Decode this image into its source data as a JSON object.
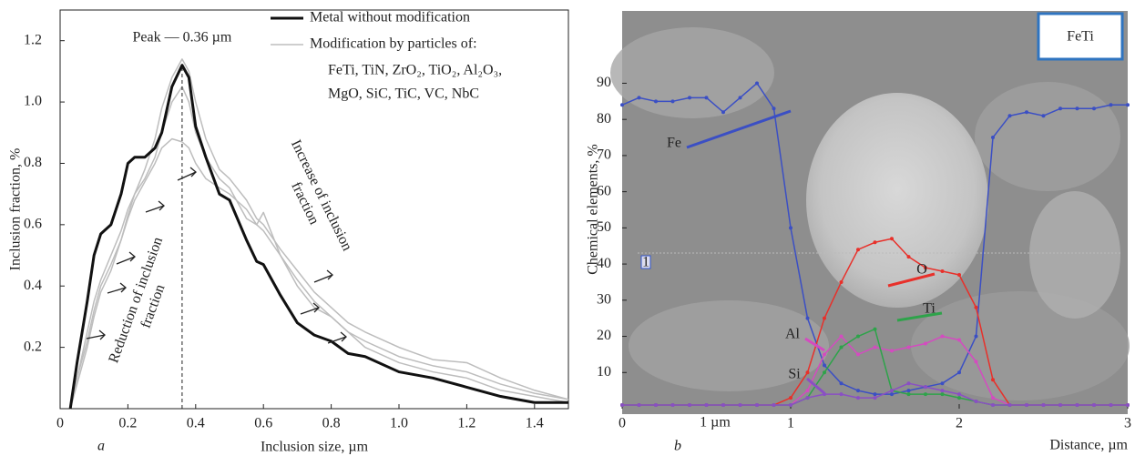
{
  "chart_data": [
    {
      "type": "line",
      "panel": "a",
      "xlabel": "Inclusion size, µm",
      "ylabel": "Inclusion fraction, %",
      "peak_label": "Peak — 0.36 µm",
      "peak_x": 0.36,
      "legend_note": [
        "FeTi, TiN, ZrO₂, TiO₂, Al₂O₃,",
        "MgO, SiC, TiC, VC, NbC"
      ],
      "notes": [
        [
          "Reduction of inclusion",
          "fraction"
        ],
        [
          "Increase of inclusion",
          "fraction"
        ]
      ],
      "xlim": [
        0,
        1.5
      ],
      "ylim": [
        0,
        1.3
      ],
      "xticks": [
        0,
        0.2,
        0.4,
        0.6,
        0.8,
        {
          "value": 1,
          "label": "1.0"
        },
        1.2,
        1.4
      ],
      "yticks": [
        0.2,
        0.4,
        0.6,
        0.8,
        {
          "value": 1,
          "label": "1.0"
        },
        1.2
      ],
      "x": [
        0.03,
        0.05,
        0.08,
        0.1,
        0.12,
        0.15,
        0.18,
        0.2,
        0.22,
        0.25,
        0.28,
        0.3,
        0.33,
        0.36,
        0.38,
        0.4,
        0.43,
        0.47,
        0.5,
        0.55,
        0.58,
        0.6,
        0.65,
        0.7,
        0.75,
        0.8,
        0.85,
        0.9,
        1.0,
        1.1,
        1.2,
        1.3,
        1.4,
        1.5
      ],
      "series": [
        {
          "color": "#bdbdbd",
          "values": [
            0,
            0.08,
            0.2,
            0.3,
            0.38,
            0.45,
            0.55,
            0.62,
            0.68,
            0.74,
            0.8,
            0.85,
            0.88,
            0.87,
            0.85,
            0.8,
            0.75,
            0.72,
            0.7,
            0.65,
            0.6,
            0.58,
            0.5,
            0.42,
            0.35,
            0.3,
            0.25,
            0.22,
            0.17,
            0.14,
            0.12,
            0.08,
            0.05,
            0.03
          ]
        },
        {
          "color": "#bdbdbd",
          "values": [
            0,
            0.1,
            0.22,
            0.32,
            0.4,
            0.47,
            0.55,
            0.63,
            0.7,
            0.78,
            0.88,
            0.98,
            1.08,
            1.14,
            1.1,
            1.0,
            0.88,
            0.78,
            0.75,
            0.68,
            0.62,
            0.6,
            0.52,
            0.45,
            0.38,
            0.33,
            0.28,
            0.25,
            0.2,
            0.16,
            0.15,
            0.1,
            0.06,
            0.03
          ]
        },
        {
          "name": "Modification by particles of:",
          "color": "#bdbdbd",
          "values": [
            0,
            0.1,
            0.25,
            0.35,
            0.42,
            0.5,
            0.58,
            0.65,
            0.7,
            0.75,
            0.82,
            0.9,
            1.0,
            1.05,
            1.0,
            0.9,
            0.82,
            0.75,
            0.72,
            0.62,
            0.6,
            0.64,
            0.5,
            0.4,
            0.33,
            0.3,
            0.25,
            0.2,
            0.15,
            0.12,
            0.1,
            0.06,
            0.04,
            0.02
          ]
        },
        {
          "name": "Metal without modification",
          "color": "#111111",
          "values": [
            0,
            0.15,
            0.35,
            0.5,
            0.57,
            0.6,
            0.7,
            0.8,
            0.82,
            0.82,
            0.85,
            0.9,
            1.05,
            1.12,
            1.08,
            0.92,
            0.82,
            0.7,
            0.68,
            0.55,
            0.48,
            0.47,
            0.37,
            0.28,
            0.24,
            0.22,
            0.18,
            0.17,
            0.12,
            0.1,
            0.07,
            0.04,
            0.02,
            0.02
          ]
        }
      ]
    },
    {
      "type": "line",
      "panel": "b",
      "xlabel": "Distance, µm",
      "ylabel": "Chemical elements, %",
      "inset_label": "FeTi",
      "scale_bar": "1 µm",
      "marker_label": "1",
      "xlim": [
        0,
        3
      ],
      "ylim": [
        0,
        110
      ],
      "xticks": [
        0,
        1,
        2,
        3
      ],
      "yticks": [
        10,
        20,
        30,
        40,
        50,
        60,
        70,
        80,
        90
      ],
      "x": [
        0,
        0.1,
        0.2,
        0.3,
        0.4,
        0.5,
        0.6,
        0.7,
        0.8,
        0.9,
        1.0,
        1.1,
        1.2,
        1.3,
        1.4,
        1.5,
        1.6,
        1.7,
        1.8,
        1.9,
        2.0,
        2.1,
        2.2,
        2.3,
        2.4,
        2.5,
        2.6,
        2.7,
        2.8,
        2.9,
        3.0
      ],
      "series": [
        {
          "name": "Fe",
          "color": "#3b4fc4",
          "values": [
            84,
            86,
            85,
            85,
            86,
            86,
            82,
            86,
            90,
            83,
            50,
            25,
            12,
            7,
            5,
            4,
            4,
            5,
            6,
            7,
            10,
            20,
            75,
            81,
            82,
            81,
            83,
            83,
            83,
            84,
            84
          ]
        },
        {
          "name": "O",
          "color": "#e8302a",
          "values": [
            1,
            1,
            1,
            1,
            1,
            1,
            1,
            1,
            1,
            1,
            3,
            10,
            25,
            35,
            44,
            46,
            47,
            42,
            39,
            38,
            37,
            28,
            8,
            1,
            1,
            1,
            1,
            1,
            1,
            1,
            1
          ]
        },
        {
          "name": "Al",
          "color": "#d44bc0",
          "values": [
            1,
            1,
            1,
            1,
            1,
            1,
            1,
            1,
            1,
            1,
            1,
            5,
            15,
            20,
            15,
            17,
            16,
            17,
            18,
            20,
            19,
            13,
            3,
            1,
            1,
            1,
            1,
            1,
            1,
            1,
            1
          ]
        },
        {
          "name": "Ti",
          "color": "#2ea34a",
          "values": [
            1,
            1,
            1,
            1,
            1,
            1,
            1,
            1,
            1,
            1,
            1,
            3,
            10,
            17,
            20,
            22,
            5,
            4,
            4,
            4,
            3,
            2,
            1,
            1,
            1,
            1,
            1,
            1,
            1,
            1,
            1
          ]
        },
        {
          "name": "Si",
          "color": "#8a4fc4",
          "values": [
            1,
            1,
            1,
            1,
            1,
            1,
            1,
            1,
            1,
            1,
            1,
            3,
            4,
            4,
            3,
            3,
            5,
            7,
            6,
            5,
            4,
            2,
            1,
            1,
            1,
            1,
            1,
            1,
            1,
            1,
            1
          ]
        }
      ]
    }
  ]
}
